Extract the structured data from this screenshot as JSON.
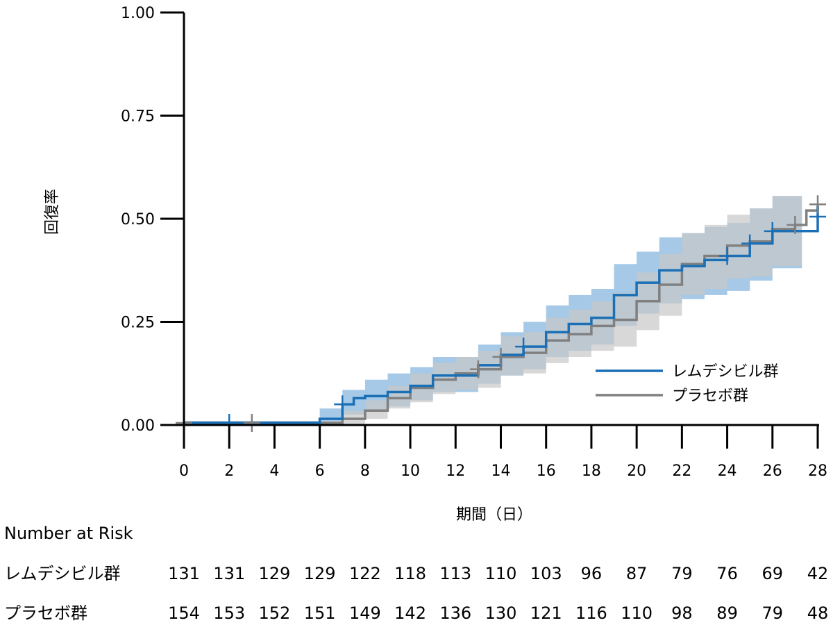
{
  "chart_data": {
    "type": "line",
    "title": "",
    "xlabel": "期間（日）",
    "ylabel": "回復率",
    "xlim": [
      0,
      28
    ],
    "ylim": [
      0,
      1
    ],
    "x_ticks": [
      0,
      2,
      4,
      6,
      8,
      10,
      12,
      14,
      16,
      18,
      20,
      22,
      24,
      26,
      28
    ],
    "x_tick_labels": [
      "0",
      "2",
      "4",
      "6",
      "8",
      "10",
      "12",
      "14",
      "16",
      "18",
      "20",
      "22",
      "24",
      "26",
      "28"
    ],
    "y_ticks": [
      0,
      0.25,
      0.5,
      0.75,
      1.0
    ],
    "y_tick_labels": [
      "0.00",
      "0.25",
      "0.50",
      "0.75",
      "1.00"
    ],
    "grid": false,
    "legend": "right",
    "series": [
      {
        "name": "レムデシビル群",
        "color": "#1a6fb5",
        "band_color": "#7fb2dc",
        "steps": [
          [
            0,
            0.005
          ],
          [
            6,
            0.015
          ],
          [
            7,
            0.05
          ],
          [
            7.5,
            0.065
          ],
          [
            8,
            0.07
          ],
          [
            9,
            0.08
          ],
          [
            10,
            0.095
          ],
          [
            11,
            0.12
          ],
          [
            12,
            0.12
          ],
          [
            13,
            0.145
          ],
          [
            14,
            0.17
          ],
          [
            15,
            0.19
          ],
          [
            16,
            0.225
          ],
          [
            17,
            0.245
          ],
          [
            18,
            0.26
          ],
          [
            19,
            0.315
          ],
          [
            20,
            0.345
          ],
          [
            21,
            0.375
          ],
          [
            22,
            0.385
          ],
          [
            23,
            0.4
          ],
          [
            24,
            0.41
          ],
          [
            25,
            0.44
          ],
          [
            26,
            0.47
          ],
          [
            28,
            0.53
          ]
        ],
        "lower": [
          [
            0,
            0.0
          ],
          [
            6,
            0.0
          ],
          [
            7,
            0.025
          ],
          [
            8,
            0.035
          ],
          [
            9,
            0.045
          ],
          [
            10,
            0.06
          ],
          [
            11,
            0.08
          ],
          [
            12,
            0.08
          ],
          [
            13,
            0.1
          ],
          [
            14,
            0.12
          ],
          [
            15,
            0.135
          ],
          [
            16,
            0.165
          ],
          [
            17,
            0.18
          ],
          [
            18,
            0.195
          ],
          [
            19,
            0.24
          ],
          [
            20,
            0.27
          ],
          [
            21,
            0.295
          ],
          [
            22,
            0.305
          ],
          [
            23,
            0.315
          ],
          [
            24,
            0.325
          ],
          [
            25,
            0.35
          ],
          [
            26,
            0.38
          ],
          [
            27.3,
            0.39
          ]
        ],
        "upper": [
          [
            0,
            0.01
          ],
          [
            6,
            0.04
          ],
          [
            7,
            0.085
          ],
          [
            8,
            0.11
          ],
          [
            9,
            0.125
          ],
          [
            10,
            0.14
          ],
          [
            11,
            0.165
          ],
          [
            12,
            0.165
          ],
          [
            13,
            0.195
          ],
          [
            14,
            0.225
          ],
          [
            15,
            0.25
          ],
          [
            16,
            0.29
          ],
          [
            17,
            0.315
          ],
          [
            18,
            0.33
          ],
          [
            19,
            0.39
          ],
          [
            20,
            0.42
          ],
          [
            21,
            0.455
          ],
          [
            22,
            0.465
          ],
          [
            23,
            0.48
          ],
          [
            24,
            0.49
          ],
          [
            25,
            0.525
          ],
          [
            26,
            0.555
          ],
          [
            27.3,
            0.555
          ]
        ],
        "censored": [
          [
            2,
            0.005
          ],
          [
            7,
            0.05
          ],
          [
            15,
            0.19
          ],
          [
            24,
            0.41
          ],
          [
            25,
            0.44
          ],
          [
            26,
            0.47
          ],
          [
            28,
            0.505
          ]
        ]
      },
      {
        "name": "プラセボ群",
        "color": "#808080",
        "band_color": "#c8c8c8",
        "steps": [
          [
            0,
            0.005
          ],
          [
            7,
            0.015
          ],
          [
            8,
            0.035
          ],
          [
            9,
            0.065
          ],
          [
            10,
            0.09
          ],
          [
            11,
            0.11
          ],
          [
            12,
            0.125
          ],
          [
            13,
            0.135
          ],
          [
            14,
            0.165
          ],
          [
            15,
            0.175
          ],
          [
            16,
            0.205
          ],
          [
            17,
            0.22
          ],
          [
            18,
            0.24
          ],
          [
            19,
            0.255
          ],
          [
            20,
            0.3
          ],
          [
            21,
            0.34
          ],
          [
            22,
            0.39
          ],
          [
            23,
            0.41
          ],
          [
            24,
            0.435
          ],
          [
            25,
            0.445
          ],
          [
            26,
            0.475
          ],
          [
            27,
            0.485
          ],
          [
            27.5,
            0.52
          ],
          [
            28,
            0.535
          ]
        ],
        "lower": [
          [
            0,
            0.0
          ],
          [
            7,
            0.0
          ],
          [
            8,
            0.015
          ],
          [
            9,
            0.04
          ],
          [
            10,
            0.055
          ],
          [
            11,
            0.075
          ],
          [
            12,
            0.085
          ],
          [
            13,
            0.09
          ],
          [
            14,
            0.12
          ],
          [
            15,
            0.125
          ],
          [
            16,
            0.15
          ],
          [
            17,
            0.165
          ],
          [
            18,
            0.18
          ],
          [
            19,
            0.19
          ],
          [
            20,
            0.23
          ],
          [
            21,
            0.265
          ],
          [
            22,
            0.315
          ],
          [
            23,
            0.33
          ],
          [
            24,
            0.355
          ],
          [
            25,
            0.36
          ],
          [
            26,
            0.385
          ],
          [
            27.3,
            0.39
          ]
        ],
        "upper": [
          [
            0,
            0.01
          ],
          [
            7,
            0.035
          ],
          [
            8,
            0.06
          ],
          [
            9,
            0.095
          ],
          [
            10,
            0.125
          ],
          [
            11,
            0.15
          ],
          [
            12,
            0.165
          ],
          [
            13,
            0.18
          ],
          [
            14,
            0.215
          ],
          [
            15,
            0.225
          ],
          [
            16,
            0.26
          ],
          [
            17,
            0.28
          ],
          [
            18,
            0.3
          ],
          [
            19,
            0.32
          ],
          [
            20,
            0.37
          ],
          [
            21,
            0.415
          ],
          [
            22,
            0.465
          ],
          [
            23,
            0.485
          ],
          [
            24,
            0.51
          ],
          [
            25,
            0.525
          ],
          [
            26,
            0.555
          ],
          [
            27.3,
            0.555
          ]
        ],
        "censored": [
          [
            0,
            0.005
          ],
          [
            3,
            0.005
          ],
          [
            13,
            0.135
          ],
          [
            14,
            0.165
          ],
          [
            27,
            0.485
          ],
          [
            28,
            0.535
          ]
        ]
      }
    ],
    "number_at_risk": {
      "title": "Number at Risk",
      "rows": [
        {
          "label": "レムデシビル群",
          "values": [
            "131",
            "131",
            "129",
            "129",
            "122",
            "118",
            "113",
            "110",
            "103",
            "96",
            "87",
            "79",
            "76",
            "69",
            "42"
          ]
        },
        {
          "label": "プラセボ群",
          "values": [
            "154",
            "153",
            "152",
            "151",
            "149",
            "142",
            "136",
            "130",
            "121",
            "116",
            "110",
            "98",
            "89",
            "79",
            "48"
          ]
        }
      ]
    }
  }
}
